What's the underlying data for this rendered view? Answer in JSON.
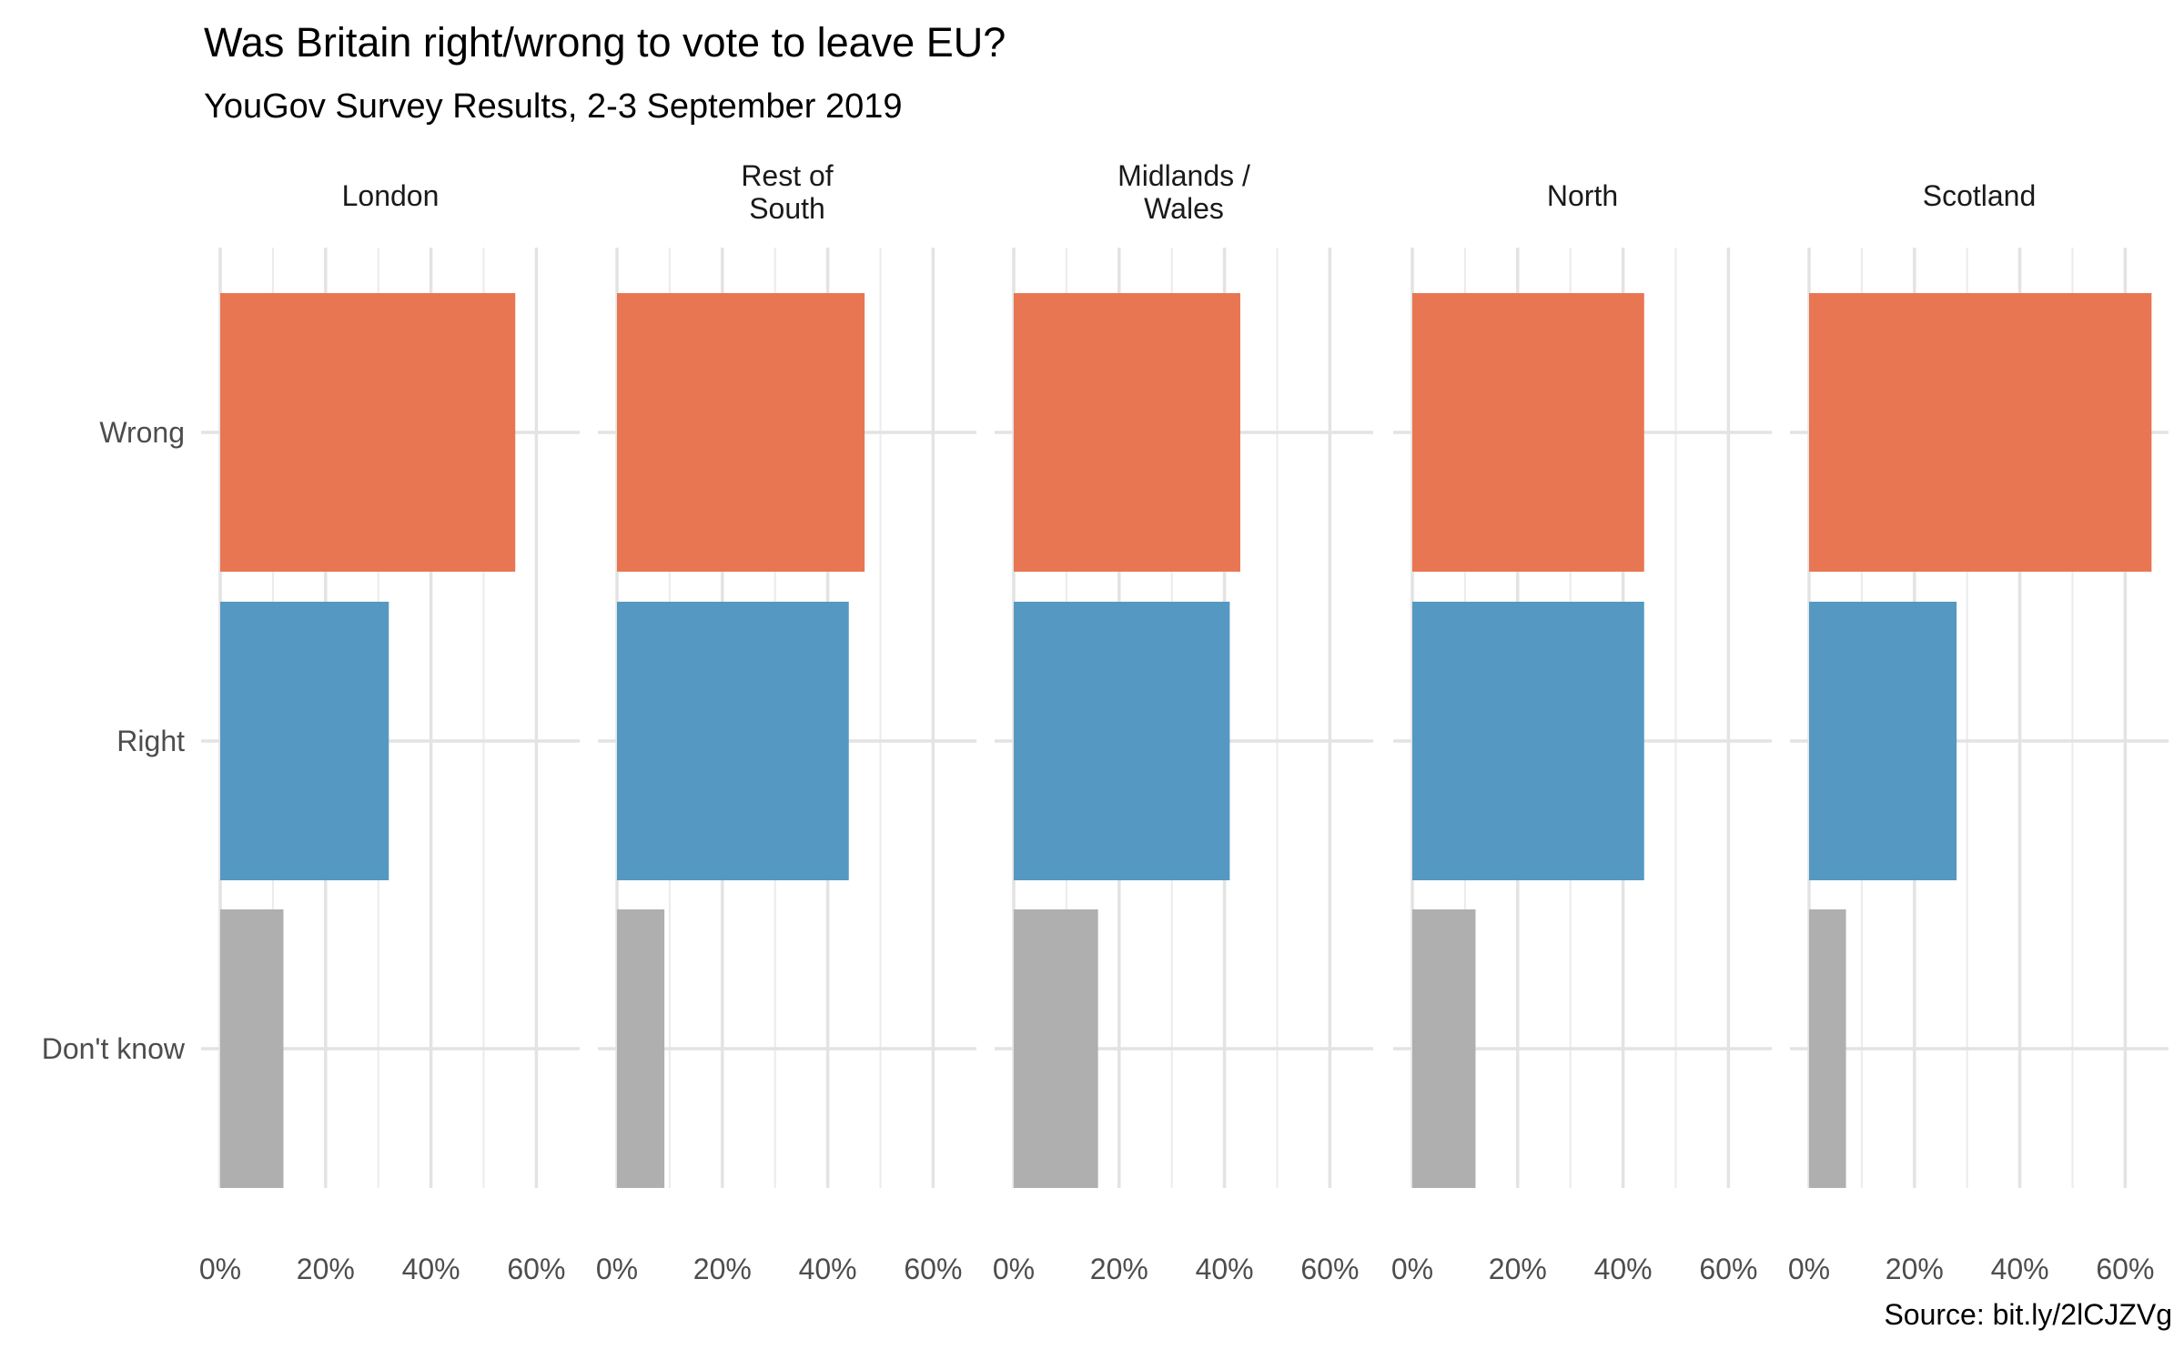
{
  "chart_data": {
    "type": "bar",
    "title": "Was Britain right/wrong to vote to leave EU?",
    "subtitle": "YouGov Survey Results, 2-3 September 2019",
    "caption": "Source: bit.ly/2lCJZVg",
    "categories": [
      "Wrong",
      "Right",
      "Don't know"
    ],
    "xlim": [
      0,
      68
    ],
    "ticks": [
      "0%",
      "20%",
      "40%",
      "60%"
    ],
    "tick_values": [
      0,
      20,
      40,
      60
    ],
    "grid": true,
    "colors": {
      "Wrong": "#E87652",
      "Right": "#5599C3",
      "Don't know": "#AFAFAF"
    },
    "facets": [
      {
        "name": [
          "London"
        ],
        "values": {
          "Wrong": 56,
          "Right": 32,
          "Don't know": 12
        }
      },
      {
        "name": [
          "Rest of",
          "South"
        ],
        "values": {
          "Wrong": 47,
          "Right": 44,
          "Don't know": 9
        }
      },
      {
        "name": [
          "Midlands /",
          "Wales"
        ],
        "values": {
          "Wrong": 43,
          "Right": 41,
          "Don't know": 16
        }
      },
      {
        "name": [
          "North"
        ],
        "values": {
          "Wrong": 44,
          "Right": 44,
          "Don't know": 12
        }
      },
      {
        "name": [
          "Scotland"
        ],
        "values": {
          "Wrong": 65,
          "Right": 28,
          "Don't know": 7
        }
      }
    ]
  }
}
